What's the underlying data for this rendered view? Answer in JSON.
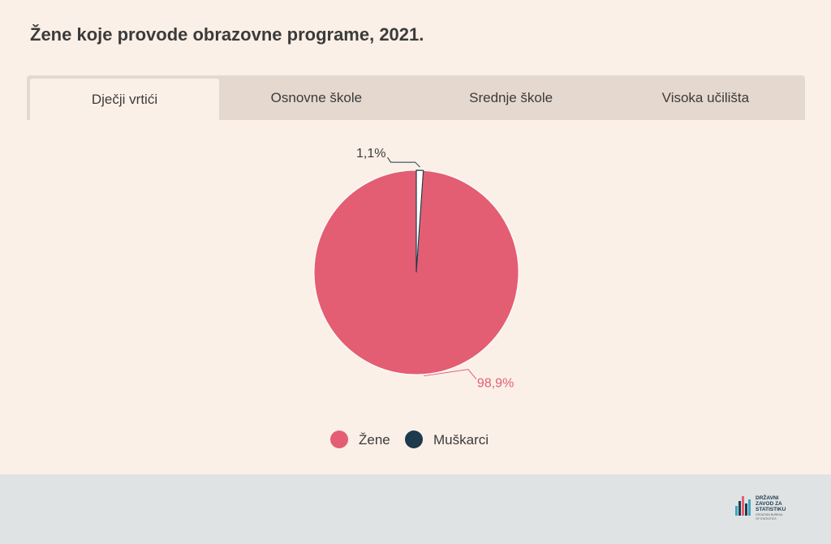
{
  "title": "Žene koje provode obrazovne programe, 2021.",
  "tabs": [
    {
      "label": "Dječji vrtići",
      "active": true
    },
    {
      "label": "Osnovne škole",
      "active": false
    },
    {
      "label": "Srednje škole",
      "active": false
    },
    {
      "label": "Visoka učilišta",
      "active": false
    }
  ],
  "chart_data": {
    "type": "pie",
    "slices": [
      {
        "name": "Žene",
        "value": 98.9,
        "label": "98,9%",
        "color": "#e35e73"
      },
      {
        "name": "Muškarci",
        "value": 1.1,
        "label": "1,1%",
        "color": "#1e3a4c"
      }
    ],
    "legend": {
      "position": "bottom-center"
    }
  },
  "logo": {
    "lines": [
      "DRŽAVNI",
      "ZAVOD ZA",
      "STATISTIKU",
      "CROATIAN BUREAU",
      "OF STATISTICS"
    ]
  }
}
